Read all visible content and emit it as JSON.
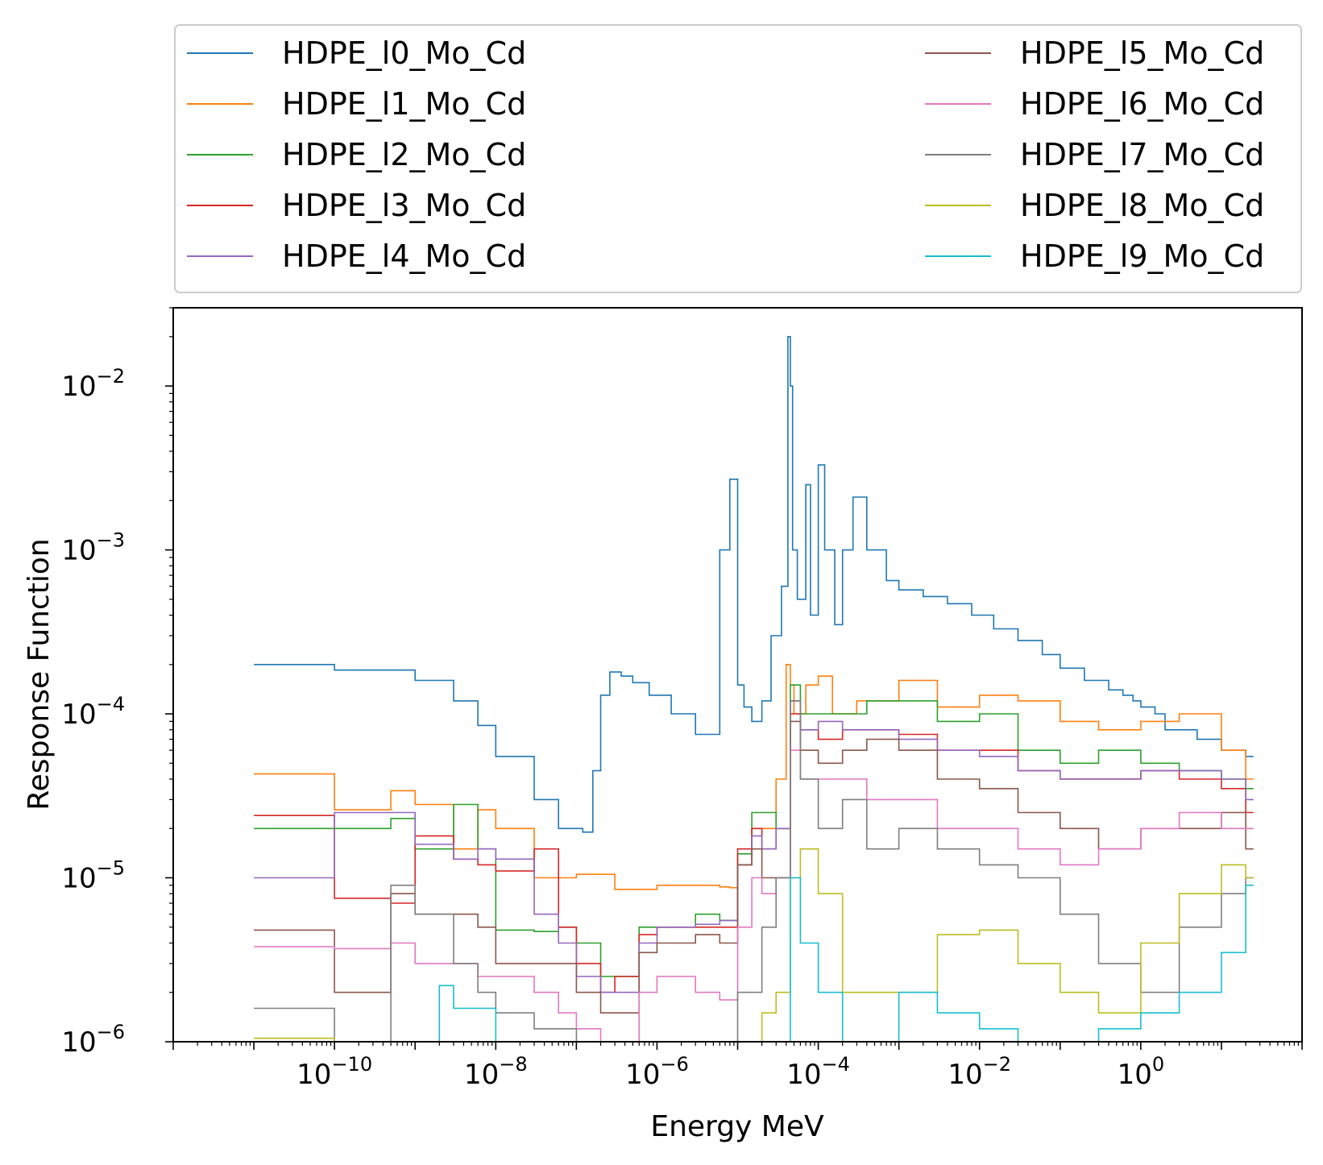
{
  "chart_data": {
    "type": "line",
    "step": true,
    "xlabel": "Energy MeV",
    "ylabel": "Response Function",
    "xscale": "log",
    "yscale": "log",
    "xlim": [
      1e-12,
      100.0
    ],
    "ylim": [
      1e-06,
      0.03
    ],
    "grid": false,
    "legend_position": "top, above plot, 2 columns",
    "x_ticks": [
      {
        "value": 1e-10,
        "base": "10",
        "exp": "−10"
      },
      {
        "value": 1e-08,
        "base": "10",
        "exp": "−8"
      },
      {
        "value": 1e-06,
        "base": "10",
        "exp": "−6"
      },
      {
        "value": 0.0001,
        "base": "10",
        "exp": "−4"
      },
      {
        "value": 0.01,
        "base": "10",
        "exp": "−2"
      },
      {
        "value": 1,
        "base": "10",
        "exp": "0"
      }
    ],
    "y_ticks": [
      {
        "value": 1e-06,
        "base": "10",
        "exp": "−6"
      },
      {
        "value": 1e-05,
        "base": "10",
        "exp": "−5"
      },
      {
        "value": 0.0001,
        "base": "10",
        "exp": "−4"
      },
      {
        "value": 0.001,
        "base": "10",
        "exp": "−3"
      },
      {
        "value": 0.01,
        "base": "10",
        "exp": "−2"
      }
    ],
    "series": [
      {
        "name": "HDPE_l0_Mo_Cd",
        "color": "#1f77b4",
        "x": [
          1e-11,
          3e-11,
          1e-10,
          5e-10,
          1e-09,
          3e-09,
          6e-09,
          1e-08,
          3e-08,
          6e-08,
          1.2e-07,
          1.6e-07,
          2e-07,
          2.6e-07,
          3.6e-07,
          5e-07,
          8e-07,
          1.5e-06,
          3e-06,
          6e-06,
          8e-06,
          1e-05,
          1.2e-05,
          1.5e-05,
          2e-05,
          2.6e-05,
          3.5e-05,
          4.2e-05,
          4.5e-05,
          4.8e-05,
          5.5e-05,
          7e-05,
          8e-05,
          0.0001,
          0.00012,
          0.00016,
          0.0002,
          0.00027,
          0.0004,
          0.0007,
          0.001,
          0.002,
          0.004,
          0.008,
          0.015,
          0.03,
          0.06,
          0.1,
          0.2,
          0.4,
          0.6,
          0.8,
          1,
          1.5,
          2,
          5,
          10.0,
          20.0
        ],
        "y": [
          0.0002,
          0.0002,
          0.000185,
          0.000185,
          0.00016,
          0.00012,
          8.5e-05,
          5.5e-05,
          3e-05,
          2e-05,
          1.9e-05,
          4.5e-05,
          0.00013,
          0.00018,
          0.00017,
          0.000155,
          0.00013,
          0.0001,
          7.5e-05,
          0.001,
          0.0027,
          0.00015,
          0.00011,
          9e-05,
          0.00012,
          0.0003,
          0.0006,
          0.02,
          0.01,
          0.001,
          0.0005,
          0.0025,
          0.0004,
          0.0033,
          0.001,
          0.00035,
          0.001,
          0.0021,
          0.001,
          0.00065,
          0.00057,
          0.00052,
          0.00047,
          0.0004,
          0.00033,
          0.00028,
          0.00023,
          0.00019,
          0.00016,
          0.00014,
          0.00013,
          0.00012,
          0.00011,
          0.0001,
          8e-05,
          7e-05,
          6e-05,
          5.5e-05
        ]
      },
      {
        "name": "HDPE_l1_Mo_Cd",
        "color": "#ff7f0e",
        "x": [
          1e-11,
          1e-10,
          5e-10,
          1e-09,
          3e-09,
          6e-09,
          1e-08,
          3e-08,
          6e-08,
          1e-07,
          3e-07,
          1e-06,
          3e-06,
          6e-06,
          8e-06,
          1e-05,
          1.5e-05,
          2e-05,
          3e-05,
          4e-05,
          4.5e-05,
          5e-05,
          7e-05,
          0.0001,
          0.00015,
          0.0003,
          0.001,
          0.003,
          0.01,
          0.03,
          0.1,
          0.3,
          1,
          3,
          10.0,
          20.0
        ],
        "y": [
          4.3e-05,
          2.6e-05,
          3.4e-05,
          2.8e-05,
          1.5e-05,
          2.6e-05,
          2e-05,
          1e-05,
          1e-05,
          1.05e-05,
          8.5e-06,
          9e-06,
          9e-06,
          8.8e-06,
          8.7e-06,
          1.2e-05,
          2e-05,
          2e-05,
          4e-05,
          0.0002,
          0.00015,
          0.0001,
          0.00015,
          0.00017,
          0.0001,
          0.00012,
          0.00016,
          0.00011,
          0.00013,
          0.00012,
          9e-05,
          8e-05,
          9e-05,
          0.0001,
          6e-05,
          4e-05
        ]
      },
      {
        "name": "HDPE_l2_Mo_Cd",
        "color": "#2ca02c",
        "x": [
          1e-11,
          1e-10,
          5e-10,
          1e-09,
          3e-09,
          6e-09,
          1e-08,
          3e-08,
          6e-08,
          1e-07,
          2e-07,
          3e-07,
          6e-07,
          1e-06,
          3e-06,
          6e-06,
          1e-05,
          1.5e-05,
          2e-05,
          3e-05,
          4.5e-05,
          6e-05,
          0.0001,
          0.0002,
          0.0004,
          0.001,
          0.003,
          0.01,
          0.03,
          0.1,
          0.3,
          1,
          3,
          10.0,
          20.0
        ],
        "y": [
          2e-05,
          2e-05,
          2.3e-05,
          1.5e-05,
          2.8e-05,
          1.5e-05,
          4.8e-06,
          4.7e-06,
          5e-06,
          4e-06,
          2.5e-06,
          2.5e-06,
          5e-06,
          5e-06,
          6e-06,
          5.5e-06,
          1.4e-05,
          2.5e-05,
          2.5e-05,
          2e-05,
          0.00015,
          0.0001,
          0.0001,
          0.0001,
          0.00012,
          0.00012,
          9e-05,
          0.0001,
          6e-05,
          5e-05,
          6e-05,
          5e-05,
          4.5e-05,
          4e-05,
          3.5e-05
        ]
      },
      {
        "name": "HDPE_l3_Mo_Cd",
        "color": "#d62728",
        "x": [
          1e-11,
          1e-10,
          5e-10,
          1e-09,
          3e-09,
          6e-09,
          1e-08,
          3e-08,
          6e-08,
          1e-07,
          2e-07,
          3e-07,
          6e-07,
          1e-06,
          3e-06,
          6e-06,
          1e-05,
          1.5e-05,
          2e-05,
          3e-05,
          4.5e-05,
          6e-05,
          0.0001,
          0.0002,
          0.0004,
          0.001,
          0.003,
          0.01,
          0.03,
          0.1,
          0.3,
          1,
          3,
          10.0,
          20.0
        ],
        "y": [
          2.4e-05,
          7.5e-06,
          7e-06,
          1.8e-05,
          1.3e-05,
          1.2e-05,
          1.1e-05,
          1.5e-05,
          5e-06,
          3e-06,
          2e-06,
          2.5e-06,
          4.5e-06,
          5e-06,
          5e-06,
          5e-06,
          1.5e-05,
          2e-05,
          1.5e-05,
          2e-05,
          0.0001,
          8e-05,
          7e-05,
          8e-05,
          8e-05,
          7.5e-05,
          6e-05,
          6e-05,
          4.5e-05,
          4e-05,
          4e-05,
          4.5e-05,
          4e-05,
          3.5e-05,
          2.5e-05
        ]
      },
      {
        "name": "HDPE_l4_Mo_Cd",
        "color": "#9467bd",
        "x": [
          1e-11,
          1e-10,
          5e-10,
          1e-09,
          3e-09,
          6e-09,
          1e-08,
          3e-08,
          6e-08,
          1e-07,
          2e-07,
          3e-07,
          6e-07,
          1e-06,
          3e-06,
          6e-06,
          1e-05,
          1.5e-05,
          2e-05,
          3e-05,
          4.5e-05,
          6e-05,
          0.0001,
          0.0002,
          0.0004,
          0.001,
          0.003,
          0.01,
          0.03,
          0.1,
          0.3,
          1,
          3,
          10.0,
          20.0
        ],
        "y": [
          1e-05,
          2.5e-05,
          2.5e-05,
          1.6e-05,
          1.3e-05,
          1.5e-05,
          1.3e-05,
          6e-06,
          4e-06,
          2.5e-06,
          2e-06,
          2e-06,
          4e-06,
          5e-06,
          5.2e-06,
          5.5e-06,
          1.2e-05,
          1.8e-05,
          1.5e-05,
          2e-05,
          0.00012,
          8e-05,
          9e-05,
          8e-05,
          8e-05,
          7e-05,
          6e-05,
          5.5e-05,
          4.5e-05,
          4e-05,
          4e-05,
          4.5e-05,
          4.5e-05,
          4e-05,
          3e-05
        ]
      },
      {
        "name": "HDPE_l5_Mo_Cd",
        "color": "#8c564b",
        "x": [
          1e-11,
          1e-10,
          5e-10,
          1e-09,
          3e-09,
          6e-09,
          1e-08,
          3e-08,
          6e-08,
          1e-07,
          2e-07,
          3e-07,
          6e-07,
          1e-06,
          3e-06,
          6e-06,
          1e-05,
          1.5e-05,
          2e-05,
          3e-05,
          4.5e-05,
          6e-05,
          0.0001,
          0.0002,
          0.0004,
          0.001,
          0.003,
          0.01,
          0.03,
          0.1,
          0.3,
          1,
          3,
          10.0,
          20.0
        ],
        "y": [
          4.8e-06,
          2e-06,
          8e-06,
          6e-06,
          6e-06,
          5e-06,
          3e-06,
          3e-06,
          3e-06,
          2e-06,
          1.5e-06,
          1.5e-06,
          3.5e-06,
          4e-06,
          4.5e-06,
          4e-06,
          1.2e-05,
          1.5e-05,
          1e-05,
          1e-05,
          9e-05,
          6e-05,
          5e-05,
          6e-05,
          7e-05,
          6e-05,
          4e-05,
          3.5e-05,
          2.5e-05,
          2e-05,
          1.5e-05,
          2e-05,
          2e-05,
          2.5e-05,
          1.5e-05
        ]
      },
      {
        "name": "HDPE_l6_Mo_Cd",
        "color": "#e377c2",
        "x": [
          1e-11,
          1e-10,
          5e-10,
          1e-09,
          3e-09,
          6e-09,
          1e-08,
          3e-08,
          6e-08,
          1e-07,
          2e-07,
          3e-07,
          6e-07,
          1e-06,
          3e-06,
          6e-06,
          1e-05,
          1.5e-05,
          2e-05,
          3e-05,
          4.5e-05,
          6e-05,
          0.0001,
          0.0002,
          0.0004,
          0.001,
          0.003,
          0.01,
          0.03,
          0.1,
          0.3,
          1,
          3,
          10.0,
          20.0
        ],
        "y": [
          3.8e-06,
          3.7e-06,
          4e-06,
          3e-06,
          3e-06,
          2.5e-06,
          2.5e-06,
          2e-06,
          1.5e-06,
          1.2e-06,
          1e-06,
          1e-06,
          2e-06,
          2.5e-06,
          2e-06,
          1.8e-06,
          5e-06,
          1e-05,
          8e-06,
          1e-05,
          6e-05,
          4e-05,
          4e-05,
          4e-05,
          3e-05,
          3e-05,
          2e-05,
          2e-05,
          1.5e-05,
          1.2e-05,
          1.5e-05,
          2e-05,
          2.5e-05,
          2e-05,
          2e-05
        ]
      },
      {
        "name": "HDPE_l7_Mo_Cd",
        "color": "#7f7f7f",
        "x": [
          1e-11,
          1e-10,
          5e-10,
          1e-09,
          3e-09,
          6e-09,
          1e-08,
          3e-08,
          1e-07,
          3e-07,
          1e-06,
          3e-06,
          1e-05,
          2e-05,
          3e-05,
          4.5e-05,
          6e-05,
          0.0001,
          0.0002,
          0.0004,
          0.001,
          0.003,
          0.01,
          0.03,
          0.1,
          0.3,
          1,
          3,
          10.0,
          20.0
        ],
        "y": [
          1.6e-06,
          1e-06,
          9e-06,
          6e-06,
          3e-06,
          2e-06,
          1.5e-06,
          1.2e-06,
          1e-06,
          1e-06,
          1e-06,
          1e-06,
          2e-06,
          5e-06,
          1e-05,
          0.00012,
          4e-05,
          2e-05,
          3e-05,
          1.5e-05,
          2e-05,
          1.5e-05,
          1.2e-05,
          1e-05,
          6e-06,
          3e-06,
          2e-06,
          5e-06,
          8e-06,
          1e-05
        ]
      },
      {
        "name": "HDPE_l8_Mo_Cd",
        "color": "#bcbd22",
        "x": [
          1e-11,
          1e-10,
          1e-09,
          3e-09,
          1e-08,
          1e-07,
          1e-06,
          1e-05,
          2e-05,
          3e-05,
          4.5e-05,
          6e-05,
          0.0001,
          0.0002,
          0.0004,
          0.001,
          0.003,
          0.01,
          0.03,
          0.1,
          0.3,
          1,
          3,
          10.0,
          20.0
        ],
        "y": [
          1.05e-06,
          1e-06,
          1e-06,
          1e-06,
          1e-06,
          1e-06,
          1e-06,
          1e-06,
          1.5e-06,
          2e-06,
          1e-05,
          1.5e-05,
          8e-06,
          2e-06,
          2e-06,
          2e-06,
          4.5e-06,
          4.8e-06,
          3e-06,
          2e-06,
          1.5e-06,
          4e-06,
          8e-06,
          1.2e-05,
          1e-05
        ]
      },
      {
        "name": "HDPE_l9_Mo_Cd",
        "color": "#17becf",
        "x": [
          1e-11,
          1e-10,
          1e-09,
          2e-09,
          3e-09,
          1e-08,
          1e-07,
          1e-06,
          1e-05,
          2e-05,
          4.5e-05,
          6e-05,
          0.0001,
          0.0002,
          0.0004,
          0.001,
          0.003,
          0.01,
          0.03,
          0.1,
          0.3,
          1,
          3,
          10.0,
          20.0
        ],
        "y": [
          1e-06,
          1e-06,
          1e-06,
          2.2e-06,
          1.6e-06,
          1e-06,
          1e-06,
          1e-06,
          1e-06,
          1e-06,
          1e-05,
          4e-06,
          2e-06,
          1e-06,
          1e-06,
          2e-06,
          1.5e-06,
          1.2e-06,
          1e-06,
          1e-06,
          1.2e-06,
          1.5e-06,
          2e-06,
          3.5e-06,
          9e-06
        ]
      }
    ]
  }
}
